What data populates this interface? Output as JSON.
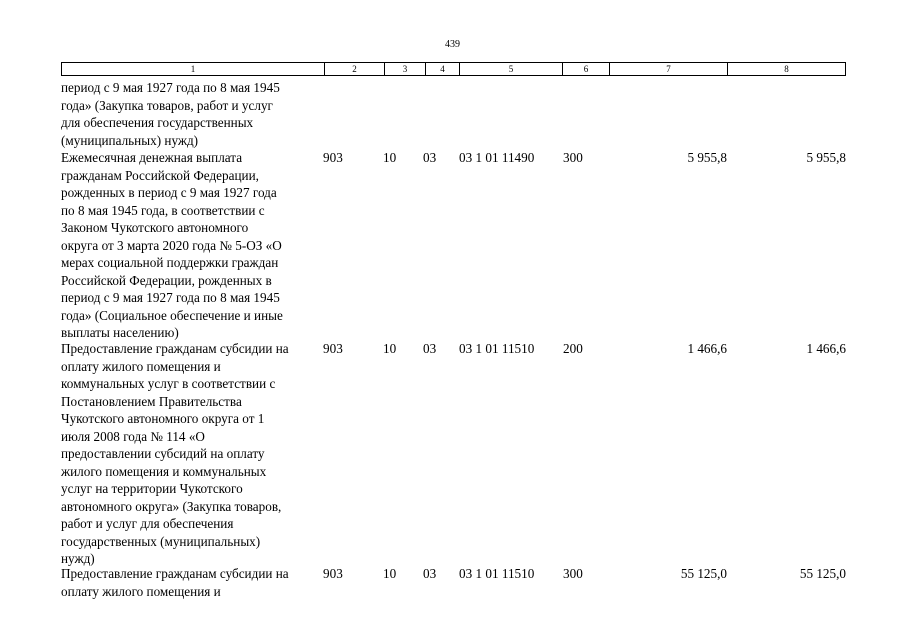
{
  "page_number": "439",
  "header": [
    "1",
    "2",
    "3",
    "4",
    "5",
    "6",
    "7",
    "8"
  ],
  "rows": [
    {
      "description": "период с 9 мая 1927 года по 8 мая 1945\nгода» (Закупка товаров, работ и услуг\nдля обеспечения государственных\n(муниципальных) нужд)",
      "col2": "",
      "col3": "",
      "col4": "",
      "col5": "",
      "col6": "",
      "col7": "",
      "col8": ""
    },
    {
      "description": "Ежемесячная денежная выплата\nгражданам Российской Федерации,\nрожденных в период с 9 мая 1927 года\nпо 8 мая 1945 года, в соответствии с\nЗаконом Чукотского автономного\nокруга от 3 марта 2020 года № 5-ОЗ «О\nмерах социальной поддержки граждан\nРоссийской Федерации, рожденных в\nпериод с 9 мая 1927 года по 8 мая 1945\nгода» (Социальное обеспечение и иные\nвыплаты населению)",
      "col2": "903",
      "col3": "10",
      "col4": "03",
      "col5": "03 1 01 11490",
      "col6": "300",
      "col7": "5 955,8",
      "col8": "5 955,8"
    },
    {
      "description": "Предоставление гражданам субсидии на\nоплату жилого помещения и\nкоммунальных услуг в соответствии с\nПостановлением Правительства\nЧукотского автономного округа от 1\nиюля 2008 года № 114 «О\nпредоставлении субсидий на оплату\nжилого помещения и коммунальных\nуслуг на территории Чукотского\nавтономного округа» (Закупка товаров,\nработ и услуг для обеспечения\nгосударственных (муниципальных)\nнужд)",
      "col2": "903",
      "col3": "10",
      "col4": "03",
      "col5": "03 1 01 11510",
      "col6": "200",
      "col7": "1 466,6",
      "col8": "1 466,6"
    },
    {
      "description": "Предоставление гражданам субсидии на\nоплату жилого помещения и",
      "col2": "903",
      "col3": "10",
      "col4": "03",
      "col5": "03 1 01 11510",
      "col6": "300",
      "col7": "55 125,0",
      "col8": "55 125,0"
    }
  ]
}
